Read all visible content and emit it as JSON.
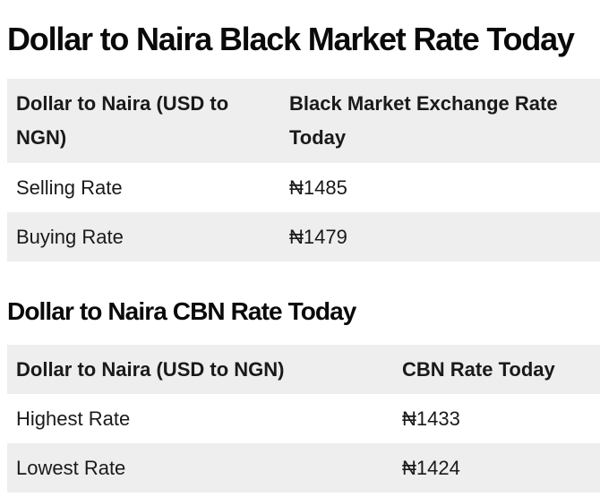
{
  "black_market": {
    "title": "Dollar to Naira Black Market Rate Today",
    "headers": [
      "Dollar to Naira (USD to NGN)",
      "Black Market Exchange Rate Today"
    ],
    "rows": [
      {
        "label": "Selling Rate",
        "value": "₦1485"
      },
      {
        "label": "Buying Rate",
        "value": "₦1479"
      }
    ]
  },
  "cbn": {
    "title": "Dollar to Naira CBN Rate Today",
    "headers": [
      "Dollar to Naira (USD to NGN)",
      "CBN Rate Today"
    ],
    "rows": [
      {
        "label": "Highest Rate",
        "value": "₦1433"
      },
      {
        "label": "Lowest Rate",
        "value": "₦1424"
      }
    ]
  }
}
